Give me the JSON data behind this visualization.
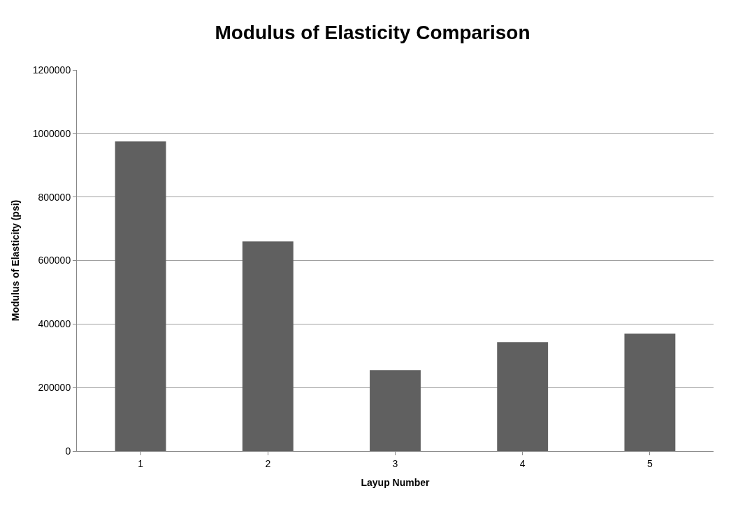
{
  "chart_data": {
    "type": "bar",
    "title": "Modulus of Elasticity Comparison",
    "xlabel": "Layup Number",
    "ylabel": "Modulus of Elasticity (psi)",
    "categories": [
      "1",
      "2",
      "3",
      "4",
      "5"
    ],
    "values": [
      975000,
      660000,
      255000,
      343000,
      370000
    ],
    "color": "#606060",
    "ylim": [
      0,
      1200000
    ],
    "yticks": [
      0,
      200000,
      400000,
      600000,
      800000,
      1000000,
      1200000
    ],
    "grid": "y"
  }
}
